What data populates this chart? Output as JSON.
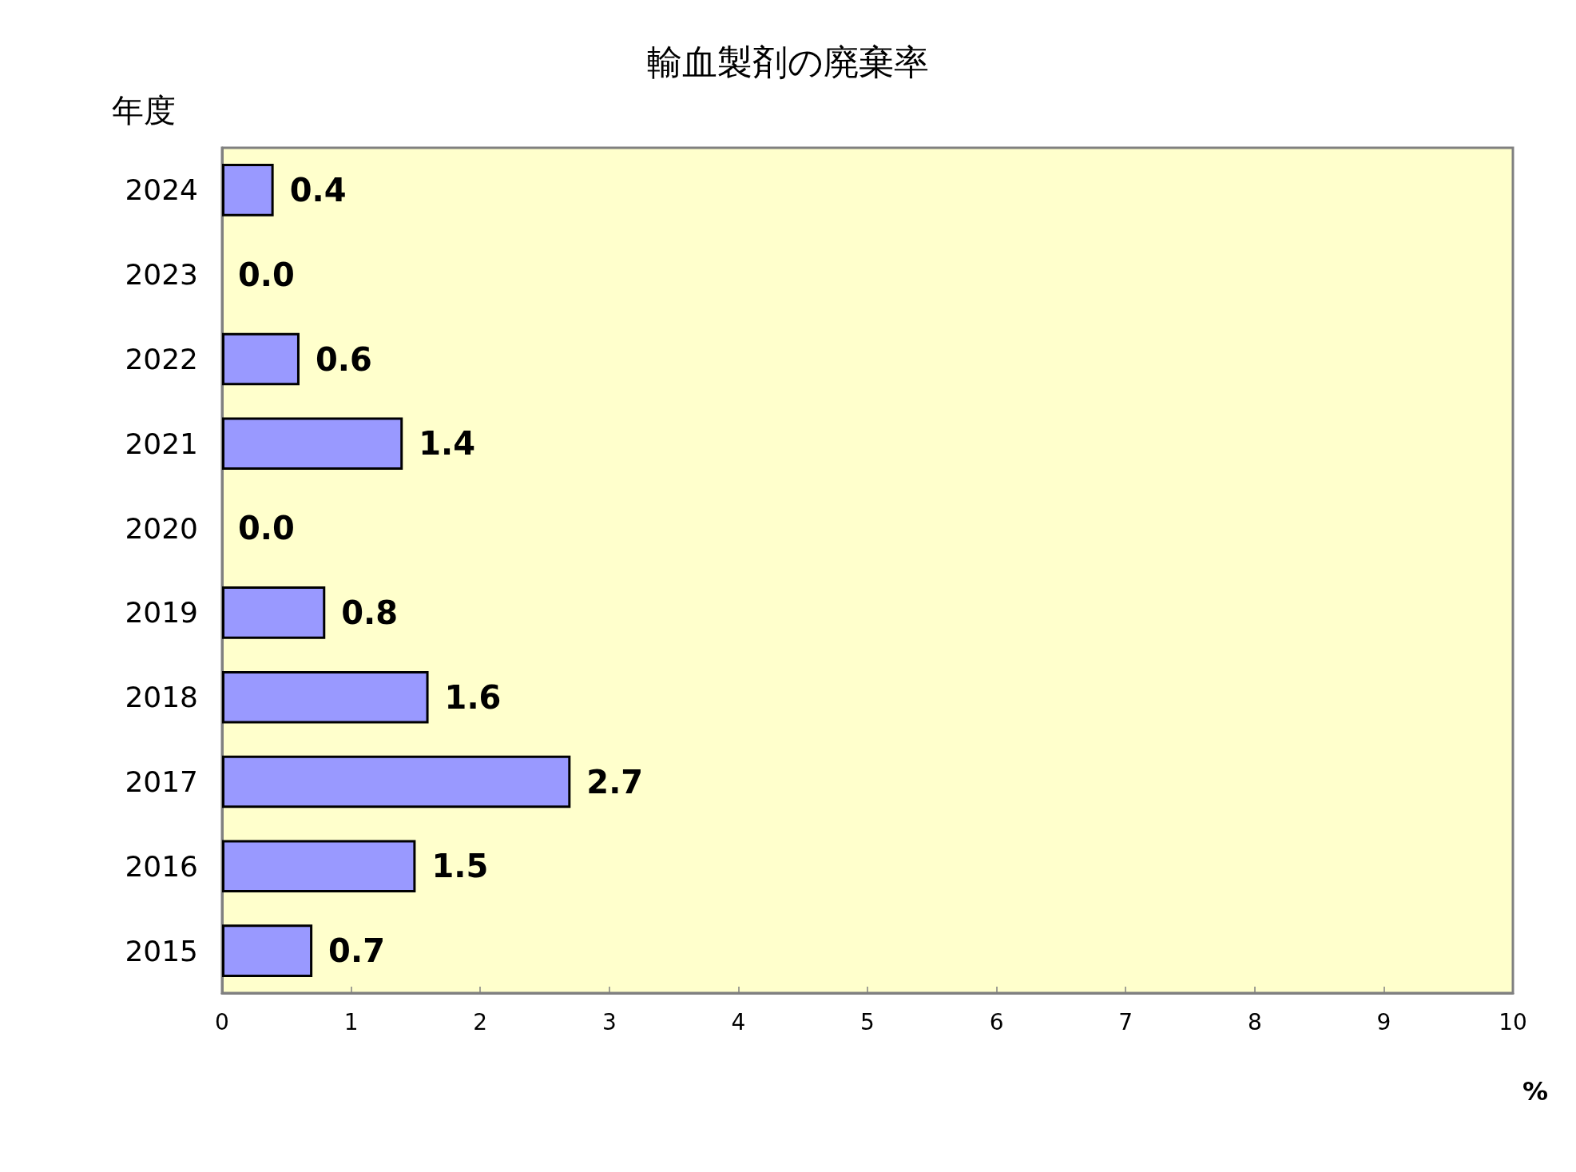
{
  "chart_data": {
    "type": "bar",
    "orientation": "horizontal",
    "title": "輸血製剤の廃棄率",
    "xlabel": "%",
    "ylabel": "年度",
    "categories": [
      "2024",
      "2023",
      "2022",
      "2021",
      "2020",
      "2019",
      "2018",
      "2017",
      "2016",
      "2015"
    ],
    "values": [
      0.4,
      0.0,
      0.6,
      1.4,
      0.0,
      0.8,
      1.6,
      2.7,
      1.5,
      0.7
    ],
    "value_labels": [
      "0.4",
      "0.0",
      "0.6",
      "1.4",
      "0.0",
      "0.8",
      "1.6",
      "2.7",
      "1.5",
      "0.7"
    ],
    "color": "#9999ff",
    "xlim": [
      0,
      10
    ],
    "xticks": [
      0,
      1,
      2,
      3,
      4,
      5,
      6,
      7,
      8,
      9,
      10
    ],
    "grid": false
  }
}
